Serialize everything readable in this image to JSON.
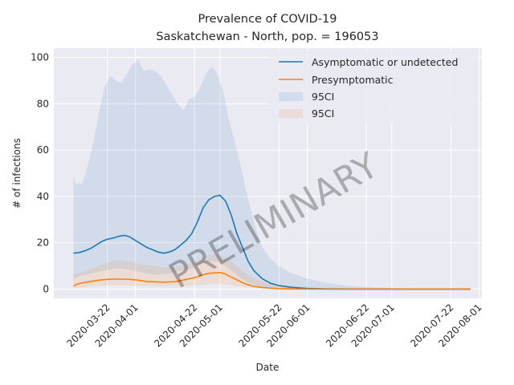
{
  "chart_data": {
    "type": "line",
    "title": "Prevalence of COVID-19",
    "subtitle": "Saskatchewan - North, pop. = 196053",
    "xlabel": "Date",
    "ylabel": "# of infections",
    "watermark": "PRELIMINARY",
    "xlim": [
      "2020-03-03",
      "2020-08-02"
    ],
    "ylim": [
      -4,
      104
    ],
    "x_ticks": [
      "2020-03-22",
      "2020-04-01",
      "2020-04-22",
      "2020-05-01",
      "2020-05-22",
      "2020-06-01",
      "2020-06-22",
      "2020-07-01",
      "2020-07-22",
      "2020-08-01"
    ],
    "y_ticks": [
      0,
      20,
      40,
      60,
      80,
      100
    ],
    "grid": true,
    "legend_position": "top-right",
    "legend": [
      {
        "label": "Asymptomatic or undetected",
        "kind": "line",
        "color": "#1f77b4"
      },
      {
        "label": "Presymptomatic",
        "kind": "line",
        "color": "#ff7f0e"
      },
      {
        "label": "95CI",
        "kind": "band",
        "color": "#1f77b4"
      },
      {
        "label": "95CI",
        "kind": "band",
        "color": "#ff7f0e"
      }
    ],
    "series": [
      {
        "name": "Asymptomatic or undetected",
        "color": "#1f77b4",
        "x": [
          "2020-03-10",
          "2020-03-12",
          "2020-03-14",
          "2020-03-16",
          "2020-03-18",
          "2020-03-20",
          "2020-03-22",
          "2020-03-24",
          "2020-03-26",
          "2020-03-28",
          "2020-03-30",
          "2020-04-01",
          "2020-04-03",
          "2020-04-05",
          "2020-04-07",
          "2020-04-09",
          "2020-04-11",
          "2020-04-13",
          "2020-04-15",
          "2020-04-17",
          "2020-04-19",
          "2020-04-21",
          "2020-04-23",
          "2020-04-25",
          "2020-04-27",
          "2020-04-29",
          "2020-05-01",
          "2020-05-03",
          "2020-05-05",
          "2020-05-07",
          "2020-05-09",
          "2020-05-11",
          "2020-05-13",
          "2020-05-16",
          "2020-05-19",
          "2020-05-22",
          "2020-05-26",
          "2020-06-01",
          "2020-06-08",
          "2020-06-15",
          "2020-06-22",
          "2020-07-01",
          "2020-07-10",
          "2020-07-20",
          "2020-07-29"
        ],
        "values": [
          15.5,
          15.8,
          16.5,
          17.5,
          19,
          20.5,
          21.5,
          22,
          22.8,
          23.2,
          22.5,
          21,
          19.5,
          18,
          17,
          16,
          15.5,
          16,
          17,
          19,
          21,
          24,
          29,
          35,
          38.5,
          40,
          40.5,
          38,
          32,
          24,
          18,
          12,
          8,
          4.5,
          2.5,
          1.5,
          0.8,
          0.3,
          0.1,
          0.05,
          0.02,
          0.01,
          0,
          0,
          0
        ]
      },
      {
        "name": "Presymptomatic",
        "color": "#ff7f0e",
        "x": [
          "2020-03-10",
          "2020-03-11",
          "2020-03-12",
          "2020-03-14",
          "2020-03-16",
          "2020-03-18",
          "2020-03-20",
          "2020-03-22",
          "2020-03-24",
          "2020-03-26",
          "2020-03-28",
          "2020-03-30",
          "2020-04-01",
          "2020-04-03",
          "2020-04-05",
          "2020-04-07",
          "2020-04-09",
          "2020-04-11",
          "2020-04-13",
          "2020-04-15",
          "2020-04-17",
          "2020-04-19",
          "2020-04-21",
          "2020-04-23",
          "2020-04-25",
          "2020-04-27",
          "2020-04-29",
          "2020-05-01",
          "2020-05-03",
          "2020-05-05",
          "2020-05-07",
          "2020-05-09",
          "2020-05-11",
          "2020-05-13",
          "2020-05-16",
          "2020-05-19",
          "2020-05-22",
          "2020-05-26",
          "2020-06-01",
          "2020-06-10",
          "2020-06-22",
          "2020-07-10",
          "2020-07-29"
        ],
        "values": [
          1.2,
          2,
          2.4,
          2.9,
          3.3,
          3.7,
          4,
          4.2,
          4.3,
          4.3,
          4.3,
          4.2,
          4,
          3.7,
          3.3,
          3.2,
          3.1,
          3,
          3.1,
          3.2,
          3.6,
          4.2,
          4.7,
          5.3,
          6.2,
          6.8,
          7,
          7.1,
          6.5,
          5.2,
          4,
          2.8,
          1.8,
          1.2,
          0.7,
          0.4,
          0.2,
          0.1,
          0.05,
          0.02,
          0,
          0,
          0
        ]
      }
    ],
    "bands": [
      {
        "color": "#1f77b4",
        "x": [
          "2020-03-10",
          "2020-03-11",
          "2020-03-12",
          "2020-03-13",
          "2020-03-15",
          "2020-03-17",
          "2020-03-19",
          "2020-03-21",
          "2020-03-23",
          "2020-03-25",
          "2020-03-27",
          "2020-03-29",
          "2020-03-31",
          "2020-04-02",
          "2020-04-04",
          "2020-04-06",
          "2020-04-08",
          "2020-04-10",
          "2020-04-12",
          "2020-04-14",
          "2020-04-16",
          "2020-04-18",
          "2020-04-20",
          "2020-04-22",
          "2020-04-24",
          "2020-04-26",
          "2020-04-28",
          "2020-04-30",
          "2020-05-02",
          "2020-05-04",
          "2020-05-06",
          "2020-05-08",
          "2020-05-10",
          "2020-05-12",
          "2020-05-14",
          "2020-05-16",
          "2020-05-19",
          "2020-05-22",
          "2020-05-26",
          "2020-06-01",
          "2020-06-08",
          "2020-06-15",
          "2020-06-22",
          "2020-07-01",
          "2020-07-10",
          "2020-07-20",
          "2020-07-29"
        ],
        "upper": [
          48,
          45,
          46,
          45,
          53,
          63,
          76,
          87,
          92,
          90,
          89,
          93,
          97,
          99,
          94,
          95,
          94,
          92,
          88,
          84,
          80,
          77,
          82,
          83,
          87,
          93,
          96,
          93,
          86,
          74,
          65,
          55,
          44,
          34,
          25,
          18,
          13,
          10,
          7,
          4.5,
          2.6,
          1.5,
          0.9,
          0.4,
          0.2,
          0.1,
          0.05
        ],
        "lower": [
          4,
          5,
          5.5,
          6,
          6.5,
          7,
          7.5,
          8,
          8.5,
          9,
          9,
          8.5,
          8,
          7.5,
          7,
          6.5,
          6.3,
          6.3,
          6.5,
          7,
          7.5,
          8,
          8.5,
          9.5,
          10.5,
          11.5,
          12,
          12,
          11,
          9,
          7,
          5,
          3.5,
          2.3,
          1.5,
          0.8,
          0.4,
          0.2,
          0.1,
          0.05,
          0.02,
          0.01,
          0,
          0,
          0,
          0,
          0
        ]
      },
      {
        "color": "#ff7f0e",
        "x": [
          "2020-03-10",
          "2020-03-12",
          "2020-03-15",
          "2020-03-18",
          "2020-03-21",
          "2020-03-24",
          "2020-03-27",
          "2020-03-30",
          "2020-04-02",
          "2020-04-05",
          "2020-04-08",
          "2020-04-11",
          "2020-04-14",
          "2020-04-17",
          "2020-04-20",
          "2020-04-23",
          "2020-04-26",
          "2020-04-29",
          "2020-05-02",
          "2020-05-05",
          "2020-05-08",
          "2020-05-11",
          "2020-05-14",
          "2020-05-18",
          "2020-05-22",
          "2020-06-01",
          "2020-06-15",
          "2020-07-01",
          "2020-07-29"
        ],
        "upper": [
          6,
          7,
          8,
          9.5,
          11,
          12,
          12.5,
          12,
          11,
          10.5,
          10,
          9.5,
          9.5,
          10,
          11,
          12,
          14,
          15,
          14,
          12,
          9,
          6,
          4,
          2.5,
          1.5,
          0.5,
          0.1,
          0.03,
          0
        ],
        "lower": [
          0.3,
          0.6,
          1,
          1.3,
          1.5,
          1.6,
          1.6,
          1.5,
          1.4,
          1.2,
          1.1,
          1.1,
          1.1,
          1.2,
          1.4,
          1.7,
          2,
          2.2,
          2.1,
          1.7,
          1.2,
          0.7,
          0.4,
          0.2,
          0.1,
          0.03,
          0.01,
          0,
          0
        ]
      }
    ]
  }
}
